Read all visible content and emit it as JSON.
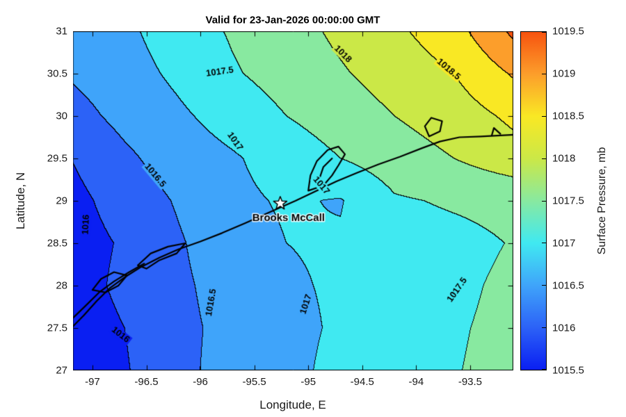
{
  "title": "Valid for 23-Jan-2026 00:00:00 GMT",
  "axes": {
    "xlabel": "Longitude, E",
    "ylabel": "Latitude, N",
    "xlim": [
      -97.18,
      -93.1
    ],
    "ylim": [
      27,
      31
    ],
    "xticks": [
      -97,
      -96.5,
      -96,
      -95.5,
      -95,
      -94.5,
      -94,
      -93.5
    ],
    "yticks": [
      27,
      27.5,
      28,
      28.5,
      29,
      29.5,
      30,
      30.5,
      31
    ]
  },
  "colorbar": {
    "label": "Surface Pressure, mb",
    "min": 1015.5,
    "max": 1019.5,
    "ticks": [
      1015.5,
      1016,
      1016.5,
      1017,
      1017.5,
      1018,
      1018.5,
      1019,
      1019.5
    ]
  },
  "chart_data": {
    "type": "heatmap",
    "subtype": "filled-contour",
    "units": "mb",
    "title": "Valid for 23-Jan-2026 00:00:00 GMT",
    "xlabel": "Longitude, E",
    "ylabel": "Latitude, N",
    "levels": [
      1015.5,
      1016,
      1016.5,
      1017,
      1017.5,
      1018,
      1018.5,
      1019,
      1019.5
    ],
    "band_colors": [
      "#0a1ff2",
      "#2c62f7",
      "#3fa4fa",
      "#40e9f1",
      "#88e9a0",
      "#cbe847",
      "#f9e824",
      "#fc9e2b",
      "#f7530f"
    ],
    "x": [
      -97.2,
      -96.7,
      -96.2,
      -95.7,
      -95.2,
      -94.7,
      -94.2,
      -93.65,
      -93.1
    ],
    "y": [
      27,
      27.5,
      28,
      28.5,
      29,
      29.5,
      30,
      30.5,
      31
    ],
    "values": [
      [
        1015.7,
        1015.95,
        1016.42,
        1016.62,
        1016.9,
        1017.1,
        1017.3,
        1017.48,
        1017.62
      ],
      [
        1015.75,
        1016.0,
        1016.4,
        1016.62,
        1016.9,
        1017.05,
        1017.3,
        1017.46,
        1017.6
      ],
      [
        1015.8,
        1016.1,
        1016.42,
        1016.68,
        1016.95,
        1017.05,
        1017.25,
        1017.42,
        1017.58
      ],
      [
        1015.8,
        1016.05,
        1016.45,
        1016.8,
        1017.0,
        1017.05,
        1017.32,
        1017.38,
        1017.52
      ],
      [
        1015.85,
        1016.2,
        1016.55,
        1016.9,
        1017.05,
        1016.97,
        1017.45,
        1017.55,
        1017.62
      ],
      [
        1016.0,
        1016.4,
        1016.75,
        1016.95,
        1017.2,
        1017.5,
        1017.75,
        1018.0,
        1018.3
      ],
      [
        1016.3,
        1016.65,
        1016.92,
        1017.2,
        1017.5,
        1017.75,
        1018.0,
        1018.25,
        1018.6
      ],
      [
        1016.55,
        1016.8,
        1017.1,
        1017.45,
        1017.7,
        1017.95,
        1018.2,
        1018.5,
        1019.05
      ],
      [
        1016.75,
        1016.9,
        1017.25,
        1017.55,
        1017.8,
        1018.1,
        1018.4,
        1018.8,
        1019.6
      ]
    ],
    "contour_labels": [
      {
        "text": "1017.5",
        "lon": -95.82,
        "lat": 30.52,
        "angle": -8
      },
      {
        "text": "1018",
        "lon": -94.68,
        "lat": 30.73,
        "angle": 45
      },
      {
        "text": "1018.5",
        "lon": -93.7,
        "lat": 30.55,
        "angle": 40
      },
      {
        "text": "1017",
        "lon": -95.68,
        "lat": 29.7,
        "angle": 55
      },
      {
        "text": "1016.5",
        "lon": -96.42,
        "lat": 29.3,
        "angle": 50
      },
      {
        "text": "1016",
        "lon": -97.06,
        "lat": 28.72,
        "angle": -87
      },
      {
        "text": "1017",
        "lon": -94.88,
        "lat": 29.18,
        "angle": 50
      },
      {
        "text": "1016.5",
        "lon": -95.9,
        "lat": 27.8,
        "angle": -80
      },
      {
        "text": "1017",
        "lon": -95.02,
        "lat": 27.78,
        "angle": -72
      },
      {
        "text": "1016",
        "lon": -96.74,
        "lat": 27.42,
        "angle": 38
      },
      {
        "text": "1017.5",
        "lon": -93.62,
        "lat": 27.95,
        "angle": -55
      }
    ],
    "station": {
      "name": "Brooks McCall",
      "lon": -95.26,
      "lat": 28.97,
      "marker": "star"
    },
    "coastline": [
      [
        [
          -97.18,
          27.52
        ],
        [
          -97.08,
          27.65
        ],
        [
          -96.96,
          27.82
        ],
        [
          -96.84,
          27.97
        ],
        [
          -96.7,
          28.1
        ],
        [
          -96.55,
          28.22
        ],
        [
          -96.38,
          28.33
        ],
        [
          -96.2,
          28.43
        ],
        [
          -96.0,
          28.52
        ],
        [
          -95.8,
          28.62
        ],
        [
          -95.58,
          28.74
        ],
        [
          -95.35,
          28.87
        ],
        [
          -95.12,
          29.0
        ],
        [
          -94.92,
          29.12
        ],
        [
          -94.74,
          29.23
        ],
        [
          -94.55,
          29.33
        ],
        [
          -94.35,
          29.43
        ],
        [
          -94.15,
          29.52
        ],
        [
          -93.95,
          29.62
        ],
        [
          -93.78,
          29.7
        ],
        [
          -93.6,
          29.75
        ],
        [
          -93.4,
          29.76
        ],
        [
          -93.25,
          29.77
        ],
        [
          -93.1,
          29.78
        ]
      ],
      [
        [
          -97.18,
          27.62
        ],
        [
          -97.05,
          27.78
        ],
        [
          -96.93,
          27.93
        ],
        [
          -96.8,
          28.05
        ],
        [
          -96.66,
          28.16
        ],
        [
          -96.52,
          28.26
        ]
      ],
      [
        [
          -97.0,
          27.95
        ],
        [
          -96.92,
          28.08
        ],
        [
          -96.8,
          28.16
        ],
        [
          -96.68,
          28.12
        ],
        [
          -96.76,
          28.0
        ],
        [
          -96.88,
          27.92
        ],
        [
          -97.0,
          27.95
        ]
      ],
      [
        [
          -96.58,
          28.24
        ],
        [
          -96.46,
          28.38
        ],
        [
          -96.3,
          28.46
        ],
        [
          -96.14,
          28.5
        ],
        [
          -96.22,
          28.38
        ],
        [
          -96.38,
          28.3
        ],
        [
          -96.5,
          28.2
        ],
        [
          -96.58,
          28.24
        ]
      ],
      [
        [
          -95.0,
          29.12
        ],
        [
          -94.98,
          29.3
        ],
        [
          -94.92,
          29.47
        ],
        [
          -94.82,
          29.6
        ],
        [
          -94.72,
          29.64
        ],
        [
          -94.66,
          29.55
        ],
        [
          -94.72,
          29.42
        ],
        [
          -94.78,
          29.3
        ],
        [
          -94.86,
          29.18
        ],
        [
          -95.0,
          29.12
        ]
      ],
      [
        [
          -94.9,
          29.25
        ],
        [
          -94.86,
          29.4
        ],
        [
          -94.78,
          29.5
        ]
      ],
      [
        [
          -93.88,
          29.76
        ],
        [
          -93.92,
          29.88
        ],
        [
          -93.86,
          29.98
        ],
        [
          -93.76,
          29.94
        ],
        [
          -93.78,
          29.82
        ],
        [
          -93.88,
          29.76
        ]
      ],
      [
        [
          -93.3,
          29.77
        ],
        [
          -93.28,
          29.86
        ],
        [
          -93.22,
          29.79
        ]
      ]
    ]
  }
}
